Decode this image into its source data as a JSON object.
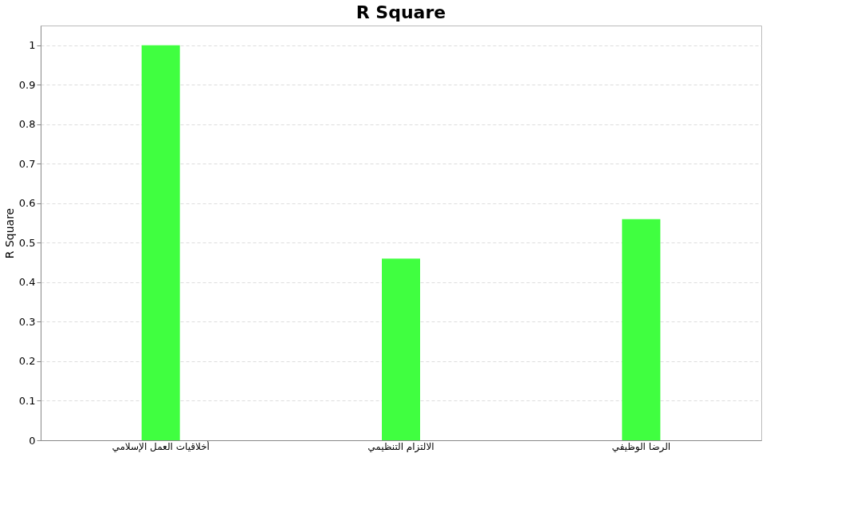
{
  "chart_data": {
    "type": "bar",
    "title": "R Square",
    "ylabel": "R Square",
    "categories": [
      "أخلاقيات العمل الإسلامي",
      "الالتزام التنظيمي",
      "الرضا الوظيفي"
    ],
    "values": [
      1.0,
      0.46,
      0.56
    ],
    "color": "#40ff40",
    "ylim": [
      0,
      1.05
    ],
    "yticks": [
      0,
      0.1,
      0.2,
      0.3,
      0.4,
      0.5,
      0.6,
      0.7,
      0.8,
      0.9,
      1
    ],
    "grid": "y"
  }
}
